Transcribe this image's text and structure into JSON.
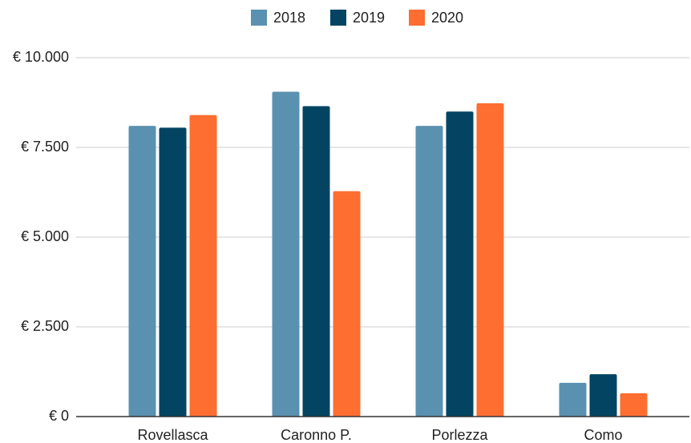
{
  "chart_data": {
    "type": "bar",
    "categories": [
      "Rovellasca",
      "Caronno P.",
      "Porlezza",
      "Como"
    ],
    "series": [
      {
        "name": "2018",
        "color": "#5b91b0",
        "values": [
          8100,
          9050,
          8100,
          940
        ]
      },
      {
        "name": "2019",
        "color": "#034463",
        "values": [
          8050,
          8650,
          8500,
          1180
        ]
      },
      {
        "name": "2020",
        "color": "#fd6e30",
        "values": [
          8400,
          6280,
          8730,
          650
        ]
      }
    ],
    "ylim": [
      0,
      10000
    ],
    "yticks": [
      {
        "value": 0,
        "label": "€ 0"
      },
      {
        "value": 2500,
        "label": "€ 2.500"
      },
      {
        "value": 5000,
        "label": "€ 5.000"
      },
      {
        "value": 7500,
        "label": "€ 7.500"
      },
      {
        "value": 10000,
        "label": "€ 10.000"
      }
    ],
    "grid": true,
    "legend": "top"
  }
}
